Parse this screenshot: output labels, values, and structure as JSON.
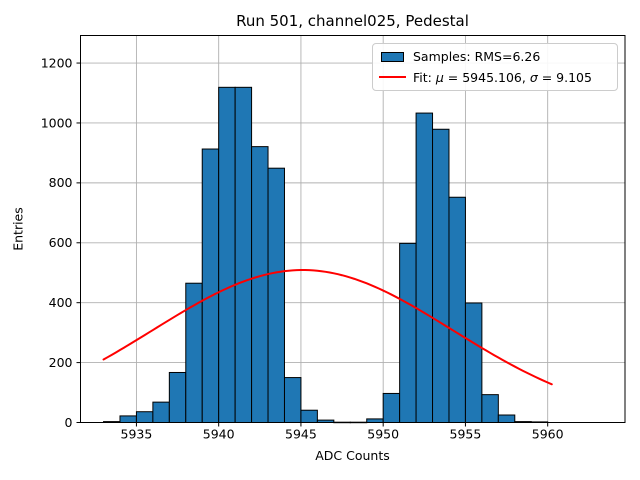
{
  "chart_data": {
    "type": "histogram",
    "title": "Run 501, channel025, Pedestal",
    "xlabel": "ADC Counts",
    "ylabel": "Entries",
    "xlim": [
      5931.6,
      5964.7
    ],
    "ylim": [
      0,
      1292
    ],
    "xticks": [
      5935,
      5940,
      5945,
      5950,
      5955,
      5960
    ],
    "yticks": [
      0,
      200,
      400,
      600,
      800,
      1000,
      1200
    ],
    "grid": true,
    "grid_color": "#b0b0b0",
    "bar_color": "#1f77b4",
    "bar_edge_color": "#000000",
    "bin_width": 1,
    "bin_left_edges": [
      5933,
      5934,
      5935,
      5936,
      5937,
      5938,
      5939,
      5940,
      5941,
      5942,
      5943,
      5944,
      5945,
      5946,
      5947,
      5948,
      5949,
      5950,
      5951,
      5952,
      5953,
      5954,
      5955,
      5956,
      5957,
      5958,
      5959
    ],
    "counts": [
      3,
      22,
      36,
      68,
      167,
      465,
      913,
      1119,
      1119,
      921,
      849,
      150,
      41,
      8,
      1,
      1,
      12,
      97,
      598,
      1033,
      979,
      752,
      399,
      93,
      25,
      3,
      2
    ],
    "fit": {
      "type": "gaussian",
      "mu": 5945.106,
      "sigma": 9.105,
      "amplitude": 509,
      "x_start": 5933,
      "x_end": 5960.3,
      "color": "#ff0000"
    },
    "legend": {
      "position": "upper right",
      "items": [
        {
          "marker": "patch",
          "color": "#1f77b4",
          "label": "Samples: RMS=6.26"
        },
        {
          "marker": "line",
          "color": "#ff0000",
          "label": "Fit: μ = 5945.106, σ = 9.105",
          "parts": {
            "prefix": "Fit: ",
            "mu": "μ",
            "mid": " = 5945.106, ",
            "sigma": "σ",
            "suffix": " = 9.105"
          }
        }
      ]
    }
  }
}
